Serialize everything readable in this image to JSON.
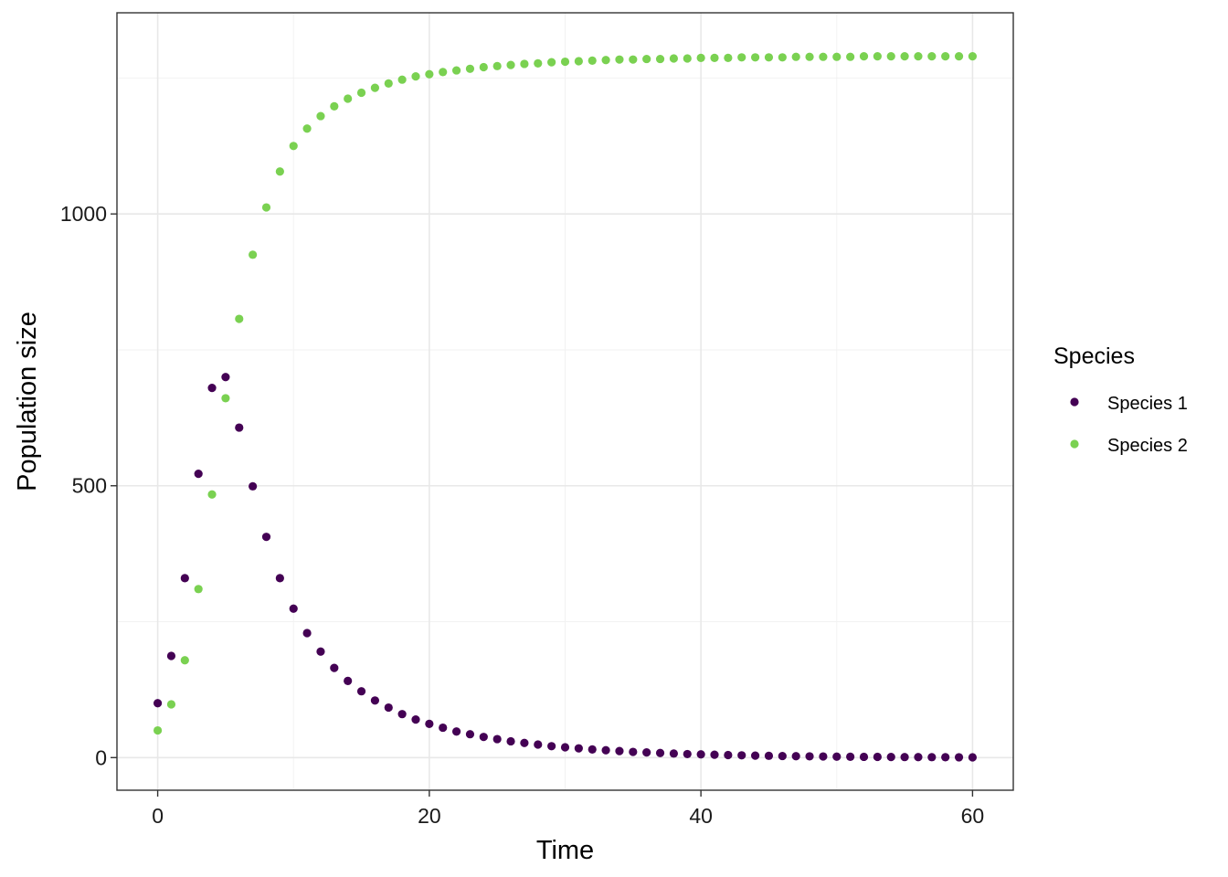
{
  "chart_data": {
    "type": "scatter",
    "xlabel": "Time",
    "ylabel": "Population size",
    "xlim": [
      -3,
      63
    ],
    "ylim": [
      -60,
      1370
    ],
    "x_ticks": [
      0,
      20,
      40,
      60
    ],
    "x_tick_labels": [
      "0",
      "20",
      "40",
      "60"
    ],
    "y_ticks": [
      0,
      500,
      1000
    ],
    "y_tick_labels": [
      "0",
      "500",
      "1000"
    ],
    "x_minor": [
      10,
      30,
      50
    ],
    "y_minor": [
      250,
      750,
      1250
    ],
    "grid": true,
    "legend": {
      "title": "Species",
      "position": "right"
    },
    "series": [
      {
        "name": "Species 1",
        "color": "#440154",
        "x": [
          0,
          1,
          2,
          3,
          4,
          5,
          6,
          7,
          8,
          9,
          10,
          11,
          12,
          13,
          14,
          15,
          16,
          17,
          18,
          19,
          20,
          21,
          22,
          23,
          24,
          25,
          26,
          27,
          28,
          29,
          30,
          31,
          32,
          33,
          34,
          35,
          36,
          37,
          38,
          39,
          40,
          41,
          42,
          43,
          44,
          45,
          46,
          47,
          48,
          49,
          50,
          51,
          52,
          53,
          54,
          55,
          56,
          57,
          58,
          59,
          60
        ],
        "y": [
          100,
          187,
          330,
          522,
          680,
          700,
          607,
          499,
          406,
          330,
          274,
          229,
          195,
          165,
          141,
          122,
          105,
          92,
          80,
          70,
          62,
          55,
          48,
          43,
          38,
          34,
          30,
          27,
          24,
          21,
          19,
          17,
          15,
          13.5,
          12,
          10.5,
          9.5,
          8.5,
          7.5,
          6.5,
          6,
          5.3,
          4.7,
          4.2,
          3.7,
          3.3,
          2.9,
          2.6,
          2.3,
          2.1,
          1.8,
          1.6,
          1.4,
          1.3,
          1.1,
          1,
          0.9,
          0.8,
          0.7,
          0.6,
          0.5
        ]
      },
      {
        "name": "Species 2",
        "color": "#7AD151",
        "x": [
          0,
          1,
          2,
          3,
          4,
          5,
          6,
          7,
          8,
          9,
          10,
          11,
          12,
          13,
          14,
          15,
          16,
          17,
          18,
          19,
          20,
          21,
          22,
          23,
          24,
          25,
          26,
          27,
          28,
          29,
          30,
          31,
          32,
          33,
          34,
          35,
          36,
          37,
          38,
          39,
          40,
          41,
          42,
          43,
          44,
          45,
          46,
          47,
          48,
          49,
          50,
          51,
          52,
          53,
          54,
          55,
          56,
          57,
          58,
          59,
          60
        ],
        "y": [
          50,
          98,
          179,
          310,
          484,
          661,
          807,
          925,
          1012,
          1078,
          1125,
          1157,
          1180,
          1198,
          1212,
          1223,
          1232,
          1240,
          1247,
          1253,
          1257,
          1261,
          1264,
          1267,
          1270,
          1272,
          1274,
          1276,
          1277,
          1279,
          1280,
          1281,
          1282,
          1283,
          1284,
          1284,
          1285,
          1285,
          1286,
          1286,
          1287,
          1287,
          1287,
          1288,
          1288,
          1288,
          1288,
          1289,
          1289,
          1289,
          1289,
          1289,
          1290,
          1290,
          1290,
          1290,
          1290,
          1290,
          1290,
          1290,
          1290
        ]
      }
    ]
  }
}
